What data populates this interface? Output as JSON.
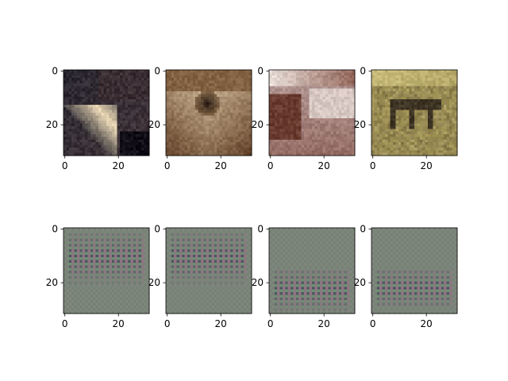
{
  "figure": {
    "background": "#ffffff"
  },
  "chart_data": [
    {
      "type": "image",
      "row": 0,
      "col": 0,
      "subject": "cat close-up",
      "xticks": [
        "0",
        "20"
      ],
      "yticks": [
        "0",
        "20"
      ],
      "xlim": [
        -0.5,
        31.5
      ],
      "ylim": [
        31.5,
        -0.5
      ],
      "palette": {
        "base": "#2a2730",
        "accent1": "#e8d6b4",
        "accent2": "#4a3a3e",
        "dark": "#120f18"
      }
    },
    {
      "type": "image",
      "row": 0,
      "col": 1,
      "subject": "dog face",
      "xticks": [
        "0",
        "20"
      ],
      "yticks": [
        "0",
        "20"
      ],
      "xlim": [
        -0.5,
        31.5
      ],
      "ylim": [
        31.5,
        -0.5
      ],
      "palette": {
        "base": "#9b7a55",
        "accent1": "#d7c0a0",
        "accent2": "#6a4a30",
        "dark": "#2a1d16"
      }
    },
    {
      "type": "image",
      "row": 0,
      "col": 2,
      "subject": "brown and white dog",
      "xticks": [
        "0",
        "20"
      ],
      "yticks": [
        "0",
        "20"
      ],
      "xlim": [
        -0.5,
        31.5
      ],
      "ylim": [
        31.5,
        -0.5
      ],
      "palette": {
        "base": "#b49a98",
        "accent1": "#e8ddd8",
        "accent2": "#7a4436",
        "dark": "#3a2522"
      }
    },
    {
      "type": "image",
      "row": 0,
      "col": 3,
      "subject": "deer in field",
      "xticks": [
        "0",
        "20"
      ],
      "yticks": [
        "0",
        "20"
      ],
      "xlim": [
        -0.5,
        31.5
      ],
      "ylim": [
        31.5,
        -0.5
      ],
      "palette": {
        "base": "#a89a5a",
        "accent1": "#c8bb7a",
        "accent2": "#6f6240",
        "dark": "#3f3525"
      }
    },
    {
      "type": "image",
      "row": 1,
      "col": 0,
      "subject": "generated noise pattern",
      "xticks": [
        "0",
        "20"
      ],
      "yticks": [
        "0",
        "20"
      ],
      "xlim": [
        -0.5,
        31.5
      ],
      "ylim": [
        31.5,
        -0.5
      ],
      "pattern_rows": [
        1,
        20
      ],
      "palette": {
        "base": "#7b8479",
        "pink": "#9a6c88",
        "green": "#5f9a6e",
        "dark": "#3e3a55"
      }
    },
    {
      "type": "image",
      "row": 1,
      "col": 1,
      "subject": "generated noise pattern",
      "xticks": [
        "0",
        "20"
      ],
      "yticks": [
        "0",
        "20"
      ],
      "xlim": [
        -0.5,
        31.5
      ],
      "ylim": [
        31.5,
        -0.5
      ],
      "pattern_rows": [
        1,
        20
      ],
      "palette": {
        "base": "#7b8479",
        "pink": "#9a6c88",
        "green": "#5f9a6e",
        "dark": "#3e3a55"
      }
    },
    {
      "type": "image",
      "row": 1,
      "col": 2,
      "subject": "generated noise pattern",
      "xticks": [
        "0",
        "20"
      ],
      "yticks": [
        "0",
        "20"
      ],
      "xlim": [
        -0.5,
        31.5
      ],
      "ylim": [
        31.5,
        -0.5
      ],
      "pattern_rows": [
        15,
        30
      ],
      "palette": {
        "base": "#7b8479",
        "pink": "#9a6c88",
        "green": "#5f9a6e",
        "dark": "#3e3a55"
      }
    },
    {
      "type": "image",
      "row": 1,
      "col": 3,
      "subject": "generated noise pattern",
      "xticks": [
        "0",
        "20"
      ],
      "yticks": [
        "0",
        "20"
      ],
      "xlim": [
        -0.5,
        31.5
      ],
      "ylim": [
        31.5,
        -0.5
      ],
      "pattern_rows": [
        15,
        29
      ],
      "palette": {
        "base": "#7b8479",
        "pink": "#9a6c88",
        "green": "#5f9a6e",
        "dark": "#3e3a55"
      }
    }
  ]
}
